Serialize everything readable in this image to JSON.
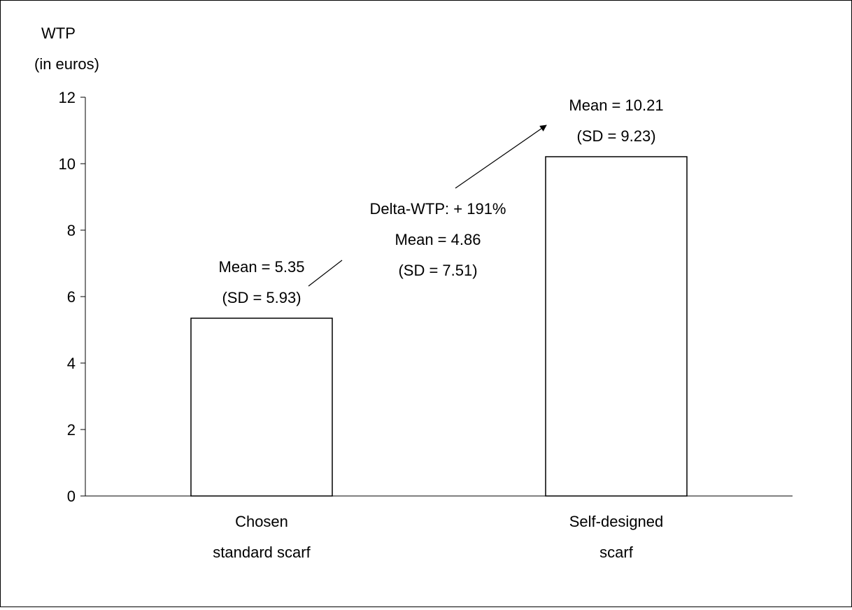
{
  "chart_data": {
    "type": "bar",
    "ylabel_lines": [
      "WTP",
      "(in euros)"
    ],
    "ylim": [
      0,
      12
    ],
    "yticks": [
      0,
      2,
      4,
      6,
      8,
      10,
      12
    ],
    "categories": [
      [
        "Chosen",
        "standard scarf"
      ],
      [
        "Self-designed",
        "scarf"
      ]
    ],
    "values": [
      5.35,
      10.21
    ],
    "bar_labels": [
      [
        "Mean = 5.35",
        "(SD = 5.93)"
      ],
      [
        "Mean = 10.21",
        "(SD = 9.23)"
      ]
    ],
    "delta_annotation": [
      "Delta-WTP: + 191%",
      "Mean = 4.86",
      "(SD = 7.51)"
    ],
    "grid": false,
    "bar_fill": "#ffffff",
    "bar_stroke": "#000000"
  }
}
